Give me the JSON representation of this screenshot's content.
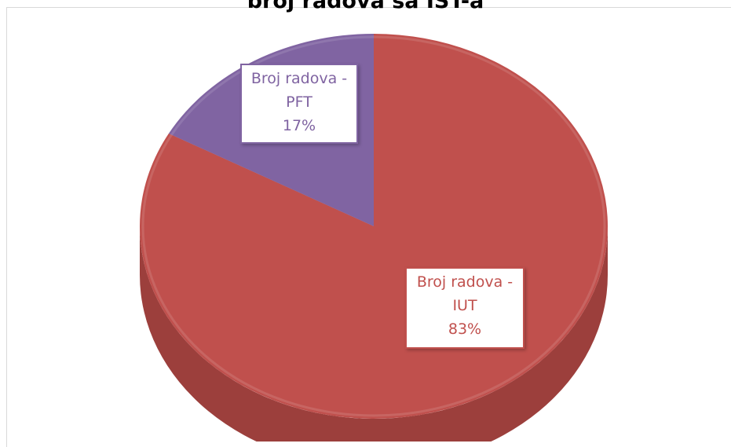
{
  "chart_data": {
    "type": "pie",
    "title": "broj radova sa IST-a",
    "categories": [
      "Broj radova - IUT",
      "Broj radova - PFT"
    ],
    "values": [
      83,
      17
    ],
    "percent_labels": [
      "83%",
      "17%"
    ],
    "label_lines": [
      [
        "Broj radova -",
        "IUT",
        "83%"
      ],
      [
        "Broj radova -",
        "PFT",
        "17%"
      ]
    ],
    "colors": [
      "#c0504d",
      "#8064a2"
    ],
    "side_colors": [
      "#9c3f3c",
      "#6a5289"
    ],
    "label_text_colors": [
      "#c0504d",
      "#7f63a1"
    ],
    "style": "3d",
    "legend": "none"
  }
}
